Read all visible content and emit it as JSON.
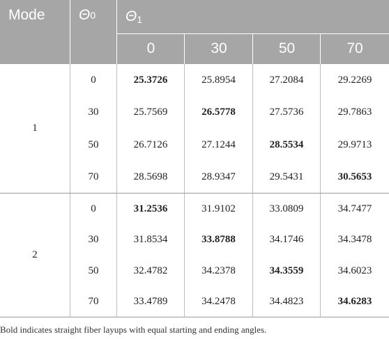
{
  "header": {
    "mode_label": "Mode",
    "theta0_symbol": "Θ",
    "theta0_sub": "0",
    "theta1_symbol": "Θ",
    "theta1_sub": "1",
    "theta1_columns": [
      "0",
      "30",
      "50",
      "70"
    ]
  },
  "groups": [
    {
      "mode": "1",
      "rows": [
        {
          "theta0": "0",
          "values": [
            "25.3726",
            "25.8954",
            "27.2084",
            "29.2269"
          ],
          "bold_index": 0
        },
        {
          "theta0": "30",
          "values": [
            "25.7569",
            "26.5778",
            "27.5736",
            "29.7863"
          ],
          "bold_index": 1
        },
        {
          "theta0": "50",
          "values": [
            "26.7126",
            "27.1244",
            "28.5534",
            "29.9713"
          ],
          "bold_index": 2
        },
        {
          "theta0": "70",
          "values": [
            "28.5698",
            "28.9347",
            "29.5431",
            "30.5653"
          ],
          "bold_index": 3
        }
      ]
    },
    {
      "mode": "2",
      "rows": [
        {
          "theta0": "0",
          "values": [
            "31.2536",
            "31.9102",
            "33.0809",
            "34.7477"
          ],
          "bold_index": 0
        },
        {
          "theta0": "30",
          "values": [
            "31.8534",
            "33.8788",
            "34.1746",
            "34.3478"
          ],
          "bold_index": 1
        },
        {
          "theta0": "50",
          "values": [
            "32.4782",
            "34.2378",
            "34.3559",
            "34.6023"
          ],
          "bold_index": 2
        },
        {
          "theta0": "70",
          "values": [
            "33.4789",
            "34.2478",
            "34.4823",
            "34.6283"
          ],
          "bold_index": 3
        }
      ]
    }
  ],
  "footnote": "Bold indicates straight fiber layups with equal starting and ending angles."
}
